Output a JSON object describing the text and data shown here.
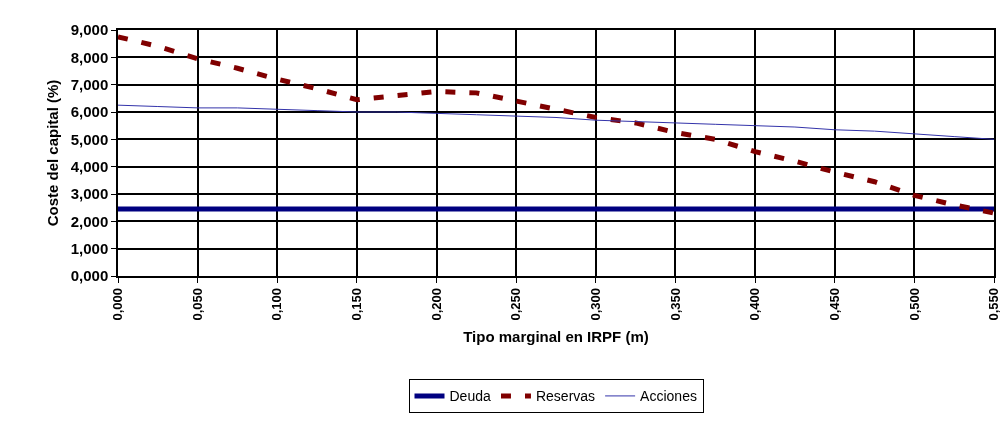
{
  "chart_data": {
    "type": "line",
    "xlabel": "Tipo marginal en IRPF (m)",
    "ylabel": "Coste del capital (%)",
    "x": [
      0,
      0.025,
      0.05,
      0.075,
      0.1,
      0.125,
      0.15,
      0.175,
      0.2,
      0.225,
      0.25,
      0.275,
      0.3,
      0.325,
      0.35,
      0.375,
      0.4,
      0.425,
      0.45,
      0.475,
      0.5,
      0.525,
      0.55
    ],
    "series": [
      {
        "name": "Deuda",
        "color": "#000080",
        "line_style": "solid",
        "values": [
          2.45,
          2.45,
          2.45,
          2.45,
          2.45,
          2.45,
          2.45,
          2.45,
          2.45,
          2.45,
          2.45,
          2.45,
          2.45,
          2.45,
          2.45,
          2.45,
          2.45,
          2.45,
          2.45,
          2.45,
          2.45,
          2.45,
          2.45
        ]
      },
      {
        "name": "Reservas",
        "color": "#800000",
        "line_style": "dashed",
        "values": [
          8.75,
          8.4,
          7.95,
          7.6,
          7.2,
          6.85,
          6.45,
          6.6,
          6.75,
          6.7,
          6.4,
          6.1,
          5.8,
          5.6,
          5.25,
          5.0,
          4.55,
          4.2,
          3.8,
          3.45,
          2.95,
          2.6,
          2.3
        ]
      },
      {
        "name": "Acciones",
        "color": "#3333aa",
        "line_style": "solid",
        "values": [
          6.25,
          6.2,
          6.15,
          6.15,
          6.1,
          6.05,
          6.0,
          6.0,
          5.95,
          5.9,
          5.85,
          5.8,
          5.7,
          5.65,
          5.6,
          5.55,
          5.5,
          5.45,
          5.35,
          5.3,
          5.2,
          5.1,
          5.0
        ]
      }
    ],
    "xlim": [
      0,
      0.55
    ],
    "xticks": [
      {
        "value": 0,
        "label": "0,000"
      },
      {
        "value": 0.05,
        "label": "0,050"
      },
      {
        "value": 0.1,
        "label": "0,100"
      },
      {
        "value": 0.15,
        "label": "0,150"
      },
      {
        "value": 0.2,
        "label": "0,200"
      },
      {
        "value": 0.25,
        "label": "0,250"
      },
      {
        "value": 0.3,
        "label": "0,300"
      },
      {
        "value": 0.35,
        "label": "0,350"
      },
      {
        "value": 0.4,
        "label": "0,400"
      },
      {
        "value": 0.45,
        "label": "0,450"
      },
      {
        "value": 0.5,
        "label": "0,500"
      },
      {
        "value": 0.55,
        "label": "0,550"
      }
    ],
    "ylim": [
      0,
      9
    ],
    "yticks": [
      {
        "value": 0,
        "label": "0,000"
      },
      {
        "value": 1,
        "label": "1,000"
      },
      {
        "value": 2,
        "label": "2,000"
      },
      {
        "value": 3,
        "label": "3,000"
      },
      {
        "value": 4,
        "label": "4,000"
      },
      {
        "value": 5,
        "label": "5,000"
      },
      {
        "value": 6,
        "label": "6,000"
      },
      {
        "value": 7,
        "label": "7,000"
      },
      {
        "value": 8,
        "label": "8,000"
      },
      {
        "value": 9,
        "label": "9,000"
      }
    ],
    "grid": true,
    "legend": "bottom",
    "marker": "none"
  }
}
